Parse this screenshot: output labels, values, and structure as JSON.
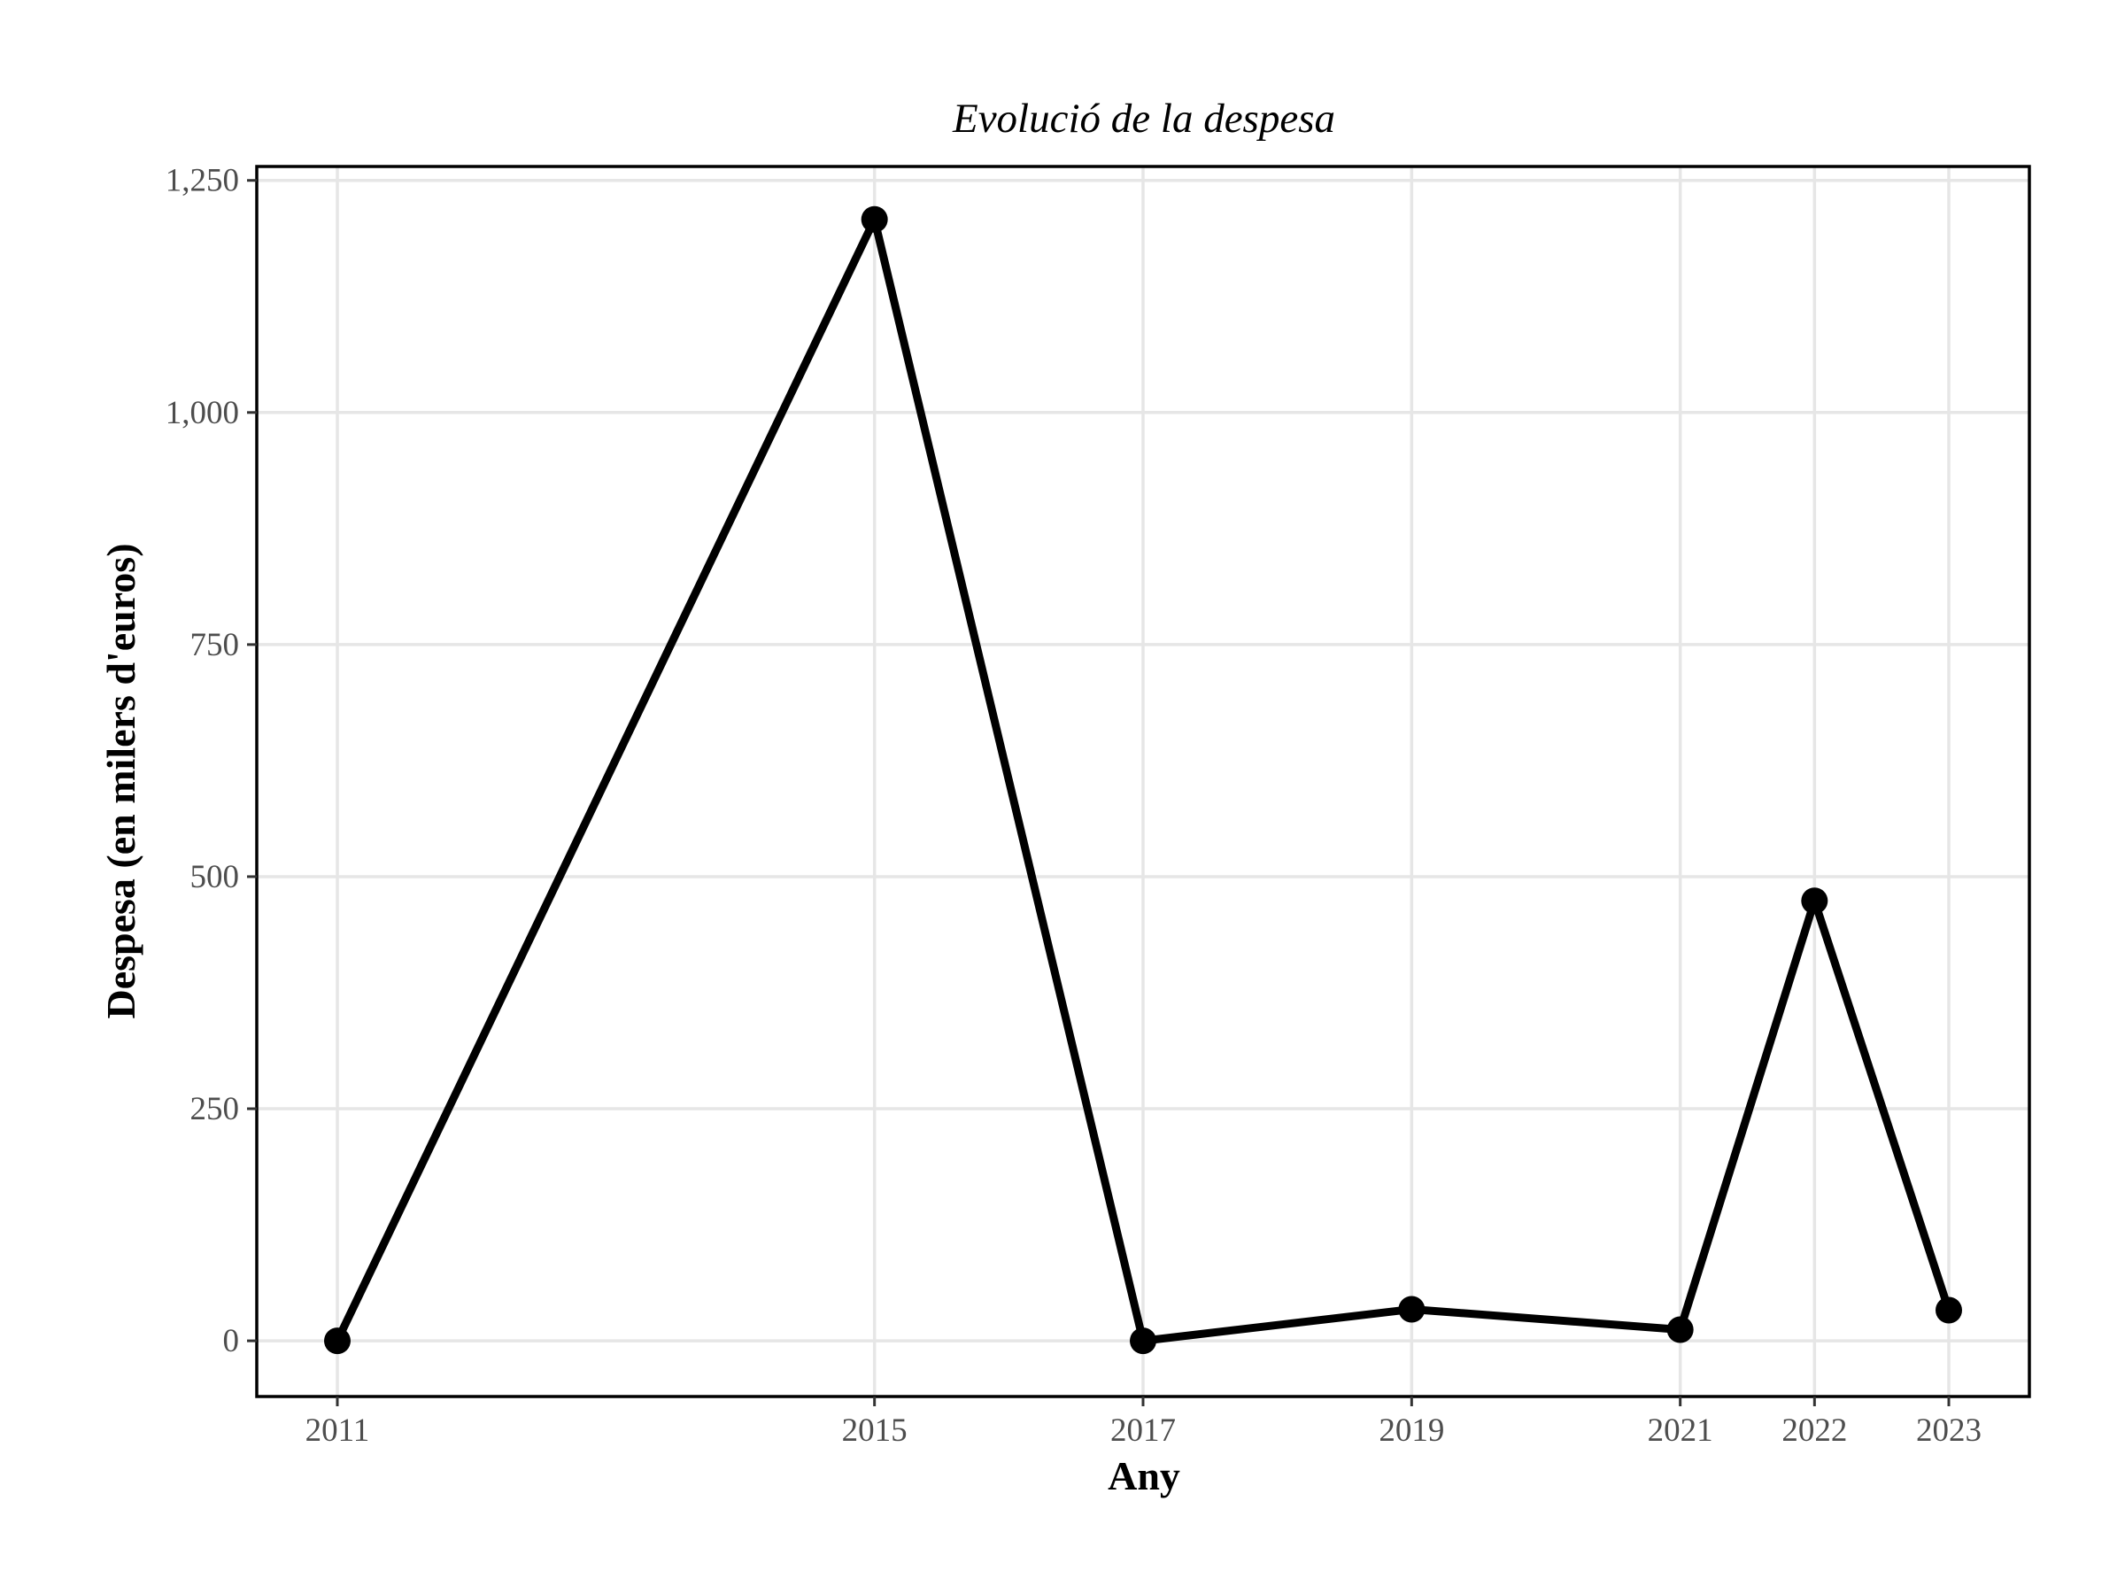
{
  "chart_data": {
    "type": "line",
    "title": "Evolució de la despesa",
    "xlabel": "Any",
    "ylabel": "Despesa (en milers d'euros)",
    "x": [
      2011,
      2015,
      2017,
      2019,
      2021,
      2022,
      2023
    ],
    "x_ticks": [
      "2011",
      "2015",
      "2017",
      "2019",
      "2021",
      "2022",
      "2023"
    ],
    "y_ticks": [
      0,
      250,
      500,
      750,
      1000,
      1250
    ],
    "y_tick_labels": [
      "0",
      "250",
      "500",
      "750",
      "1,000",
      "1,250"
    ],
    "xlim": [
      2010.4,
      2023.6
    ],
    "ylim": [
      -60,
      1265
    ],
    "series": [
      {
        "values": [
          0,
          1208,
          0,
          34,
          12,
          474,
          33
        ]
      }
    ],
    "grid": true,
    "color": "#000000"
  }
}
